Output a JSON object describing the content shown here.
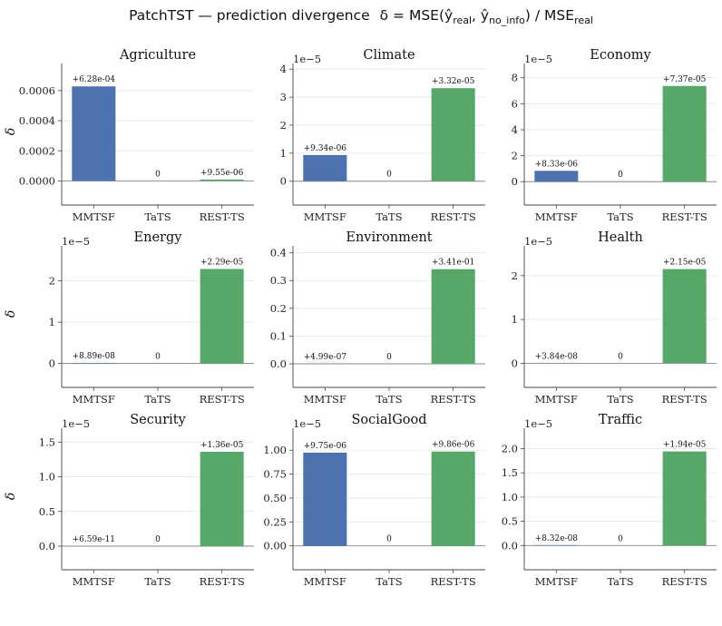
{
  "figure": {
    "title_prefix": "PatchTST — prediction divergence",
    "title_formula": "δ = MSE(ŷ",
    "title_sub1": "real",
    "title_mid": ", ŷ",
    "title_sub2": "no_info",
    "title_mid2": ") / MSE",
    "title_sub3": "real",
    "title_close": ")"
  },
  "colors": {
    "MMTSF": "#4c72b0",
    "TaTS": "#dd8452",
    "REST-TS": "#55a868"
  },
  "chart_data": [
    {
      "type": "bar",
      "title": "Agriculture",
      "categories": [
        "MMTSF",
        "TaTS",
        "REST-TS"
      ],
      "values": [
        0.000628,
        0,
        9.55e-06
      ],
      "bar_labels": [
        "+6.28e-04",
        "0",
        "+9.55e-06"
      ],
      "ylabel": "δ",
      "offset_text": "",
      "ylim": [
        -0.00016,
        0.00078
      ],
      "yticks": [
        0,
        0.0002,
        0.0004,
        0.0006
      ],
      "ytick_labels": [
        "0.0000",
        "0.0002",
        "0.0004",
        "0.0006"
      ],
      "grid": true
    },
    {
      "type": "bar",
      "title": "Climate",
      "categories": [
        "MMTSF",
        "TaTS",
        "REST-TS"
      ],
      "values": [
        0.934,
        0,
        3.32
      ],
      "bar_labels": [
        "+9.34e-06",
        "0",
        "+3.32e-05"
      ],
      "ylabel": "",
      "offset_text": "1e−5",
      "ylim": [
        -0.85,
        4.2
      ],
      "yticks": [
        0,
        1,
        2,
        3,
        4
      ],
      "ytick_labels": [
        "0",
        "1",
        "2",
        "3",
        "4"
      ],
      "grid": true
    },
    {
      "type": "bar",
      "title": "Economy",
      "categories": [
        "MMTSF",
        "TaTS",
        "REST-TS"
      ],
      "values": [
        0.833,
        0,
        7.37
      ],
      "bar_labels": [
        "+8.33e-06",
        "0",
        "+7.37e-05"
      ],
      "ylabel": "",
      "offset_text": "1e−5",
      "ylim": [
        -1.8,
        9.1
      ],
      "yticks": [
        0,
        2,
        4,
        6,
        8
      ],
      "ytick_labels": [
        "0",
        "2",
        "4",
        "6",
        "8"
      ],
      "grid": true
    },
    {
      "type": "bar",
      "title": "Energy",
      "categories": [
        "MMTSF",
        "TaTS",
        "REST-TS"
      ],
      "values": [
        0.00889,
        0,
        2.29
      ],
      "bar_labels": [
        "+8.89e-08",
        "0",
        "+2.29e-05"
      ],
      "ylabel": "δ",
      "offset_text": "1e−5",
      "ylim": [
        -0.58,
        2.85
      ],
      "yticks": [
        0,
        1,
        2
      ],
      "ytick_labels": [
        "0",
        "1",
        "2"
      ],
      "grid": true
    },
    {
      "type": "bar",
      "title": "Environment",
      "categories": [
        "MMTSF",
        "TaTS",
        "REST-TS"
      ],
      "values": [
        4.99e-07,
        0,
        0.341
      ],
      "bar_labels": [
        "+4.99e-07",
        "0",
        "+3.41e-01"
      ],
      "ylabel": "",
      "offset_text": "",
      "ylim": [
        -0.085,
        0.425
      ],
      "yticks": [
        0,
        0.1,
        0.2,
        0.3,
        0.4
      ],
      "ytick_labels": [
        "0.0",
        "0.1",
        "0.2",
        "0.3",
        "0.4"
      ],
      "grid": true
    },
    {
      "type": "bar",
      "title": "Health",
      "categories": [
        "MMTSF",
        "TaTS",
        "REST-TS"
      ],
      "values": [
        0.00384,
        0,
        2.15
      ],
      "bar_labels": [
        "+3.84e-08",
        "0",
        "+2.15e-05"
      ],
      "ylabel": "",
      "offset_text": "1e−5",
      "ylim": [
        -0.55,
        2.68
      ],
      "yticks": [
        0,
        1,
        2
      ],
      "ytick_labels": [
        "0",
        "1",
        "2"
      ],
      "grid": true
    },
    {
      "type": "bar",
      "title": "Security",
      "categories": [
        "MMTSF",
        "TaTS",
        "REST-TS"
      ],
      "values": [
        6.6e-06,
        0,
        1.36
      ],
      "bar_labels": [
        "+6.59e-11",
        "0",
        "+1.36e-05"
      ],
      "ylabel": "δ",
      "offset_text": "1e−5",
      "ylim": [
        -0.34,
        1.7
      ],
      "yticks": [
        0,
        0.5,
        1.0,
        1.5
      ],
      "ytick_labels": [
        "0.0",
        "0.5",
        "1.0",
        "1.5"
      ],
      "grid": true
    },
    {
      "type": "bar",
      "title": "SocialGood",
      "categories": [
        "MMTSF",
        "TaTS",
        "REST-TS"
      ],
      "values": [
        0.975,
        0,
        0.986
      ],
      "bar_labels": [
        "+9.75e-06",
        "0",
        "+9.86e-06"
      ],
      "ylabel": "",
      "offset_text": "1e−5",
      "ylim": [
        -0.25,
        1.23
      ],
      "yticks": [
        0,
        0.25,
        0.5,
        0.75,
        1.0
      ],
      "ytick_labels": [
        "0.00",
        "0.25",
        "0.50",
        "0.75",
        "1.00"
      ],
      "grid": true
    },
    {
      "type": "bar",
      "title": "Traffic",
      "categories": [
        "MMTSF",
        "TaTS",
        "REST-TS"
      ],
      "values": [
        0.00832,
        0,
        1.94
      ],
      "bar_labels": [
        "+8.32e-08",
        "0",
        "+1.94e-05"
      ],
      "ylabel": "",
      "offset_text": "1e−5",
      "ylim": [
        -0.5,
        2.42
      ],
      "yticks": [
        0,
        0.5,
        1.0,
        1.5,
        2.0
      ],
      "ytick_labels": [
        "0.0",
        "0.5",
        "1.0",
        "1.5",
        "2.0"
      ],
      "grid": true
    }
  ]
}
